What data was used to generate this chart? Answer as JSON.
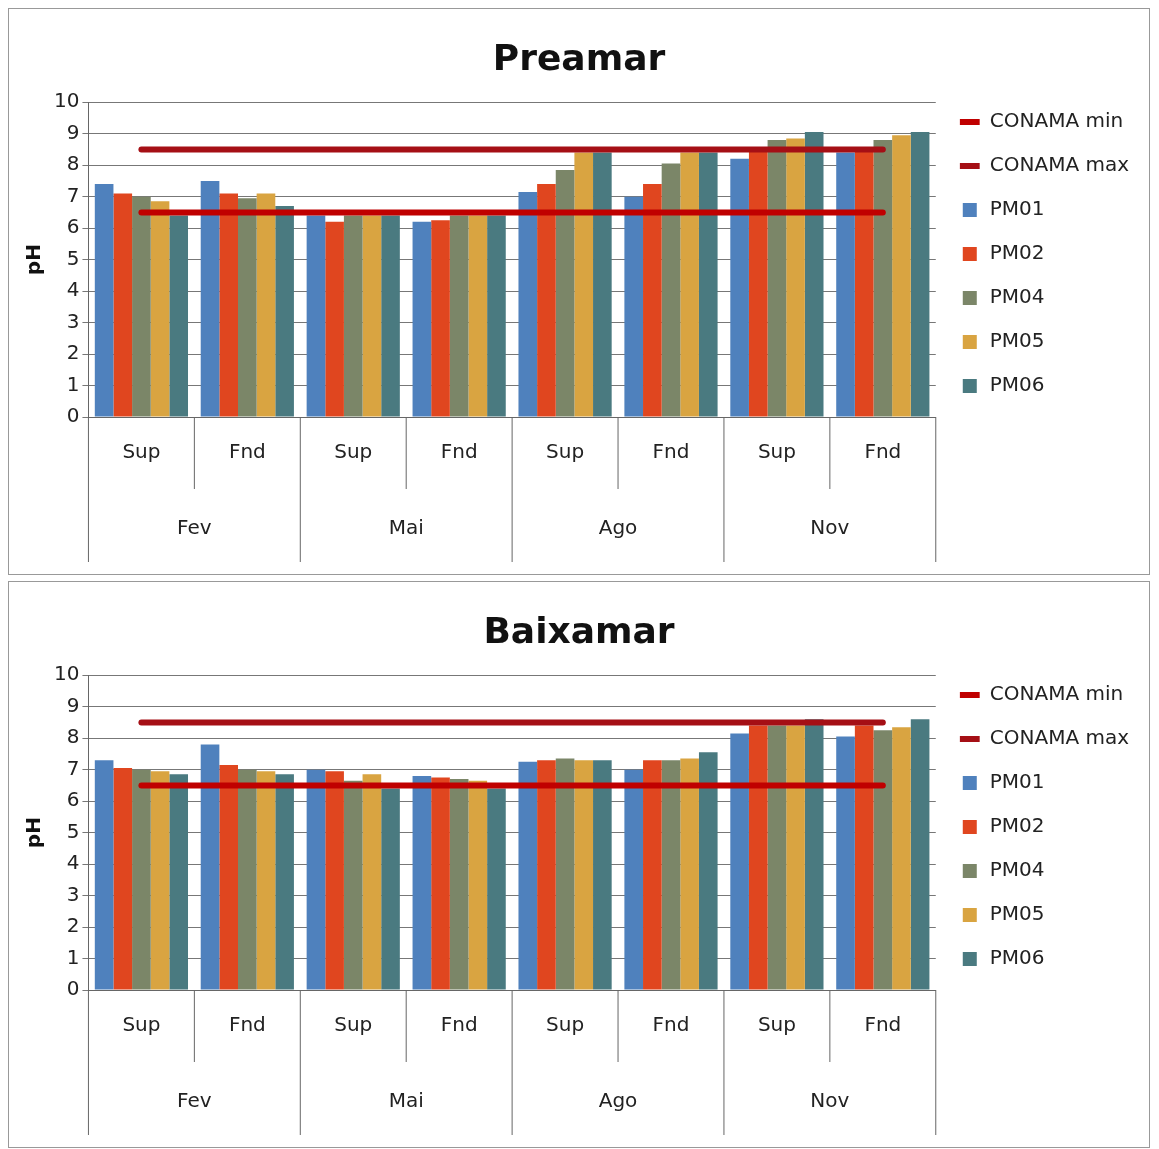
{
  "chart_data": [
    {
      "type": "bar",
      "title": "Preamar",
      "ylabel": "pH",
      "categories": [
        "Sup",
        "Fnd",
        "Sup",
        "Fnd",
        "Sup",
        "Fnd",
        "Sup",
        "Fnd"
      ],
      "annotations": [
        "Fev",
        "Mai",
        "Ago",
        "Nov"
      ],
      "ylim": [
        0,
        10
      ],
      "yticks": [
        0,
        1,
        2,
        3,
        4,
        5,
        6,
        7,
        8,
        9,
        10
      ],
      "grid": "y",
      "legend": "right",
      "series": [
        {
          "name": "PM01",
          "color": "#4f81bd",
          "values": [
            7.4,
            7.5,
            6.4,
            6.2,
            7.15,
            7.0,
            8.2,
            8.4
          ]
        },
        {
          "name": "PM02",
          "color": "#e0461f",
          "values": [
            7.1,
            7.1,
            6.2,
            6.25,
            7.4,
            7.4,
            8.5,
            8.5
          ]
        },
        {
          "name": "PM04",
          "color": "#7b8668",
          "values": [
            7.0,
            6.95,
            6.4,
            6.4,
            7.85,
            8.05,
            8.8,
            8.8
          ]
        },
        {
          "name": "PM05",
          "color": "#d9a441",
          "values": [
            6.85,
            7.1,
            6.4,
            6.4,
            8.4,
            8.4,
            8.85,
            8.95
          ]
        },
        {
          "name": "PM06",
          "color": "#4a7a80",
          "values": [
            6.4,
            6.7,
            6.4,
            6.4,
            8.4,
            8.4,
            9.05,
            9.05
          ]
        },
        {
          "name": "CONAMA min",
          "type": "line",
          "color": "#c00000",
          "values": [
            6.5,
            6.5,
            6.5,
            6.5,
            6.5,
            6.5,
            6.5,
            6.5
          ]
        },
        {
          "name": "CONAMA max",
          "type": "line",
          "color": "#a50f15",
          "values": [
            8.5,
            8.5,
            8.5,
            8.5,
            8.5,
            8.5,
            8.5,
            8.5
          ]
        }
      ]
    },
    {
      "type": "bar",
      "title": "Baixamar",
      "ylabel": "pH",
      "categories": [
        "Sup",
        "Fnd",
        "Sup",
        "Fnd",
        "Sup",
        "Fnd",
        "Sup",
        "Fnd"
      ],
      "annotations": [
        "Fev",
        "Mai",
        "Ago",
        "Nov"
      ],
      "ylim": [
        0,
        10
      ],
      "yticks": [
        0,
        1,
        2,
        3,
        4,
        5,
        6,
        7,
        8,
        9,
        10
      ],
      "grid": "y",
      "legend": "right",
      "series": [
        {
          "name": "PM01",
          "color": "#4f81bd",
          "values": [
            7.3,
            7.8,
            7.0,
            6.8,
            7.25,
            7.0,
            8.15,
            8.05
          ]
        },
        {
          "name": "PM02",
          "color": "#e0461f",
          "values": [
            7.05,
            7.15,
            6.95,
            6.75,
            7.3,
            7.3,
            8.4,
            8.4
          ]
        },
        {
          "name": "PM04",
          "color": "#7b8668",
          "values": [
            7.0,
            7.0,
            6.65,
            6.7,
            7.35,
            7.3,
            8.4,
            8.25
          ]
        },
        {
          "name": "PM05",
          "color": "#d9a441",
          "values": [
            6.95,
            6.95,
            6.85,
            6.65,
            7.3,
            7.35,
            8.4,
            8.35
          ]
        },
        {
          "name": "PM06",
          "color": "#4a7a80",
          "values": [
            6.85,
            6.85,
            6.4,
            6.4,
            7.3,
            7.55,
            8.6,
            8.6
          ]
        },
        {
          "name": "CONAMA min",
          "type": "line",
          "color": "#c00000",
          "values": [
            6.5,
            6.5,
            6.5,
            6.5,
            6.5,
            6.5,
            6.5,
            6.5
          ]
        },
        {
          "name": "CONAMA max",
          "type": "line",
          "color": "#a50f15",
          "values": [
            8.5,
            8.5,
            8.5,
            8.5,
            8.5,
            8.5,
            8.5,
            8.5
          ]
        }
      ]
    }
  ]
}
